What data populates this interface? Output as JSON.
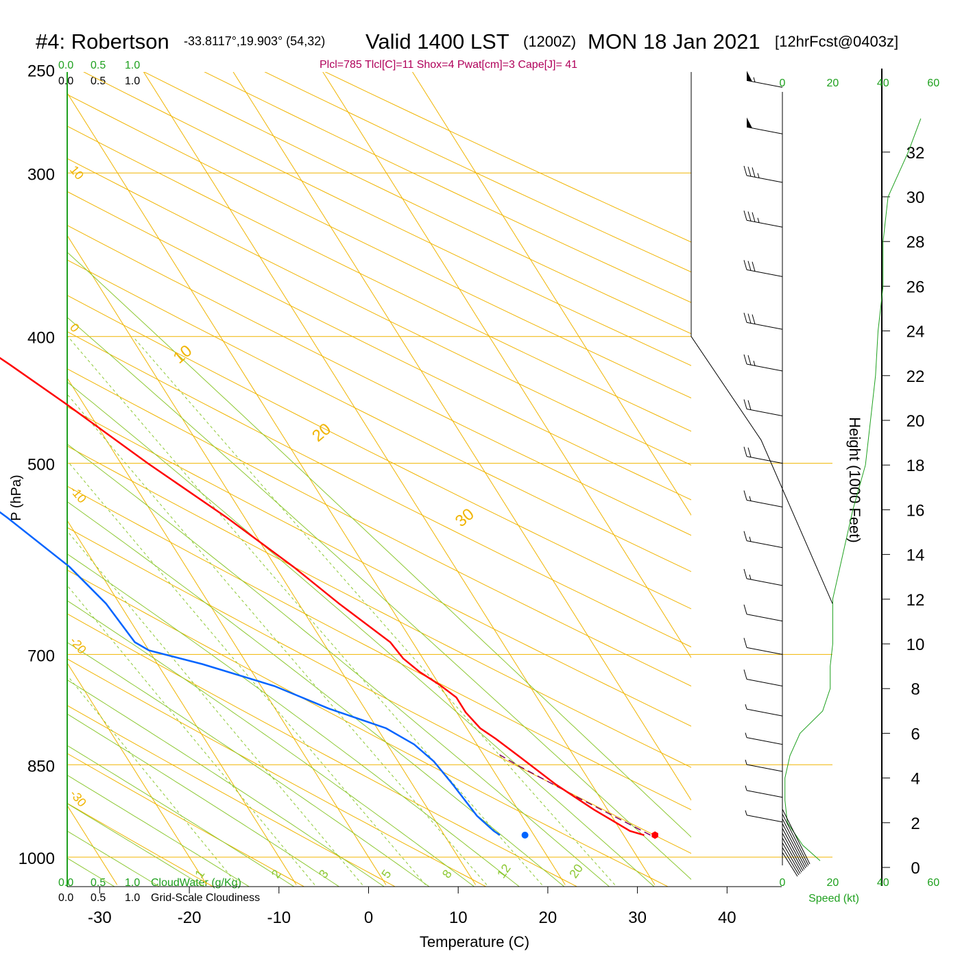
{
  "header": {
    "station": "#4: Robertson",
    "coords": "-33.8117°,19.903° (54,32)",
    "valid": "Valid 1400 LST",
    "zulu": "(1200Z)",
    "date": "MON 18 Jan 2021",
    "forecast": "[12hrFcst@0403z]"
  },
  "indices": "Plcl=785 Tlcl[C]=11 Shox=4 Pwat[cm]=3 Cape[J]= 41",
  "colors": {
    "isobar": "#f0b400",
    "adiabat": "#8cc832",
    "temperature": "#ff0000",
    "dewpoint": "#0064ff",
    "green_text": "#1ea01e",
    "index_text": "#b0005a",
    "parcel": "#800060"
  },
  "chart_data": {
    "type": "line",
    "title": "#4: Robertson  Valid 1400 LST (1200Z) MON 18 Jan 2021",
    "xlabel": "Temperature (C)",
    "ylabel": "P (hPa)",
    "y2label": "Height (1000 Feet)",
    "xlim": [
      -34,
      36
    ],
    "ylim": [
      1000,
      250
    ],
    "y_scale": "log (skew-T)",
    "x_ticks": [
      "-30",
      "-20",
      "-10",
      "0",
      "10",
      "20",
      "30",
      "40"
    ],
    "x_tick_values": [
      -30,
      -20,
      -10,
      0,
      10,
      20,
      30,
      40
    ],
    "y_ticks": [
      "250",
      "300",
      "400",
      "500",
      "700",
      "850",
      "1000"
    ],
    "y_tick_values": [
      250,
      300,
      400,
      500,
      700,
      850,
      1000
    ],
    "height_ticks": [
      "0",
      "2",
      "4",
      "6",
      "8",
      "10",
      "12",
      "14",
      "16",
      "18",
      "20",
      "22",
      "24",
      "26",
      "28",
      "30",
      "32"
    ],
    "speed_ticks": [
      "0",
      "20",
      "40",
      "60"
    ],
    "speed_label": "Speed (kt)",
    "cloud_labels": {
      "top_green": [
        "0.0",
        "0.5",
        "1.0"
      ],
      "top_black": [
        "0.0",
        "0.5",
        "1.0"
      ],
      "bottom_green": [
        "0.0",
        "0.5",
        "1.0"
      ],
      "bottom_black": [
        "0.0",
        "0.5",
        "1.0"
      ],
      "cloudwater": "CloudWater (g/Kg)",
      "cloudiness": "Grid-Scale Cloudiness"
    },
    "temperature_profile": [
      {
        "p": 962,
        "t": 32.3
      },
      {
        "p": 955,
        "t": 31.0
      },
      {
        "p": 920,
        "t": 28.5
      },
      {
        "p": 880,
        "t": 26.0
      },
      {
        "p": 840,
        "t": 24.0
      },
      {
        "p": 812,
        "t": 22.5
      },
      {
        "p": 797,
        "t": 21.5
      },
      {
        "p": 775,
        "t": 21.0
      },
      {
        "p": 755,
        "t": 21.0
      },
      {
        "p": 738,
        "t": 20.0
      },
      {
        "p": 722,
        "t": 18.7
      },
      {
        "p": 705,
        "t": 17.8
      },
      {
        "p": 685,
        "t": 17.5
      },
      {
        "p": 640,
        "t": 14.5
      },
      {
        "p": 600,
        "t": 12.0
      },
      {
        "p": 550,
        "t": 8.0
      },
      {
        "p": 500,
        "t": 3.0
      },
      {
        "p": 450,
        "t": -2.0
      },
      {
        "p": 420,
        "t": -5.5
      },
      {
        "p": 390,
        "t": -9.5
      },
      {
        "p": 350,
        "t": -15.8
      },
      {
        "p": 320,
        "t": -20.5
      },
      {
        "p": 295,
        "t": -25.0
      },
      {
        "p": 273,
        "t": -29.0
      },
      {
        "p": 258,
        "t": -32.0
      }
    ],
    "dewpoint_profile": [
      {
        "p": 962,
        "t": 16.2
      },
      {
        "p": 955,
        "t": 15.8
      },
      {
        "p": 930,
        "t": 15.0
      },
      {
        "p": 880,
        "t": 14.5
      },
      {
        "p": 845,
        "t": 14.0
      },
      {
        "p": 820,
        "t": 13.0
      },
      {
        "p": 797,
        "t": 11.0
      },
      {
        "p": 770,
        "t": 6.0
      },
      {
        "p": 740,
        "t": 1.5
      },
      {
        "p": 712,
        "t": -5.0
      },
      {
        "p": 695,
        "t": -10.0
      },
      {
        "p": 685,
        "t": -11.0
      },
      {
        "p": 640,
        "t": -11.5
      },
      {
        "p": 600,
        "t": -13.0
      },
      {
        "p": 550,
        "t": -16.5
      },
      {
        "p": 500,
        "t": -21.0
      },
      {
        "p": 450,
        "t": -26.5
      },
      {
        "p": 420,
        "t": -30.0
      },
      {
        "p": 380,
        "t": -36.0
      },
      {
        "p": 350,
        "t": -41.5
      },
      {
        "p": 330,
        "t": -43.5
      },
      {
        "p": 300,
        "t": -46.0
      },
      {
        "p": 275,
        "t": -50.0
      },
      {
        "p": 258,
        "t": -54.5
      }
    ],
    "parcel_profile": [
      {
        "p": 962,
        "t": 33.0
      },
      {
        "p": 900,
        "t": 27.5
      },
      {
        "p": 850,
        "t": 23.0
      },
      {
        "p": 835,
        "t": 21.8
      }
    ],
    "surface": {
      "p": 962,
      "temperature": 33.5,
      "dewpoint": 19.0
    },
    "isotherm_labels": [
      {
        "t": 0,
        "label": "0"
      },
      {
        "t": 10,
        "label": "10"
      },
      {
        "t": 20,
        "label": "20"
      },
      {
        "t": 30,
        "label": "30"
      }
    ],
    "left_isotherm_labels": [
      "10",
      "0",
      "-10",
      "-20",
      "-30"
    ],
    "mixing_ratio_labels": [
      "1",
      "2",
      "3",
      "5",
      "8",
      "12",
      "20"
    ],
    "mixing_ratios": [
      1,
      2,
      3,
      5,
      8,
      12,
      20
    ],
    "wind_speed_profile_kt": [
      {
        "h": 0.3,
        "s": 15
      },
      {
        "h": 1.0,
        "s": 8
      },
      {
        "h": 2.0,
        "s": 2
      },
      {
        "h": 3.0,
        "s": 1
      },
      {
        "h": 4.0,
        "s": 1
      },
      {
        "h": 5.0,
        "s": 3
      },
      {
        "h": 6.0,
        "s": 7
      },
      {
        "h": 7.0,
        "s": 16
      },
      {
        "h": 8.0,
        "s": 19
      },
      {
        "h": 9.0,
        "s": 19
      },
      {
        "h": 10.0,
        "s": 20
      },
      {
        "h": 12.0,
        "s": 20
      },
      {
        "h": 14.0,
        "s": 24
      },
      {
        "h": 16.0,
        "s": 28
      },
      {
        "h": 18.0,
        "s": 33
      },
      {
        "h": 20.0,
        "s": 35
      },
      {
        "h": 22.0,
        "s": 37
      },
      {
        "h": 24.0,
        "s": 38
      },
      {
        "h": 26.0,
        "s": 40
      },
      {
        "h": 28.0,
        "s": 40
      },
      {
        "h": 30.0,
        "s": 42
      },
      {
        "h": 32.0,
        "s": 50
      },
      {
        "h": 33.5,
        "s": 55
      }
    ],
    "wind_barbs": [
      {
        "p": 258,
        "kt": 55
      },
      {
        "p": 280,
        "kt": 52
      },
      {
        "p": 305,
        "kt": 35
      },
      {
        "p": 330,
        "kt": 35
      },
      {
        "p": 360,
        "kt": 30
      },
      {
        "p": 395,
        "kt": 30
      },
      {
        "p": 425,
        "kt": 25
      },
      {
        "p": 460,
        "kt": 20
      },
      {
        "p": 500,
        "kt": 20
      },
      {
        "p": 540,
        "kt": 15
      },
      {
        "p": 580,
        "kt": 15
      },
      {
        "p": 620,
        "kt": 15
      },
      {
        "p": 660,
        "kt": 10
      },
      {
        "p": 700,
        "kt": 10
      },
      {
        "p": 740,
        "kt": 10
      },
      {
        "p": 780,
        "kt": 5
      },
      {
        "p": 820,
        "kt": 5
      },
      {
        "p": 860,
        "kt": 5
      },
      {
        "p": 900,
        "kt": 5
      },
      {
        "p": 940,
        "kt": 5
      }
    ],
    "grid": true
  }
}
